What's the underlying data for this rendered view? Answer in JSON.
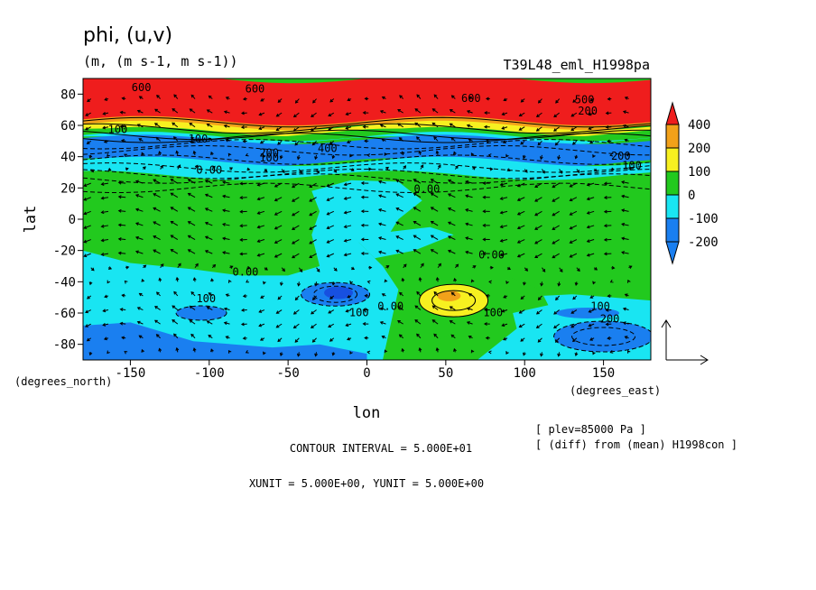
{
  "chart_data": {
    "type": "heatmap",
    "title": "phi, (u,v)",
    "units": "(m, (m s-1, m s-1))",
    "run_name": "T39L48_eml_H1998pa",
    "xlabel": "lon",
    "ylabel": "lat",
    "x_unit_label": "(degrees_east)",
    "y_unit_label": "(degrees_north)",
    "xlim": [
      -180,
      180
    ],
    "ylim": [
      -90,
      90
    ],
    "x_ticks": [
      -150,
      -100,
      -50,
      0,
      50,
      100,
      150
    ],
    "y_ticks": [
      -80,
      -60,
      -40,
      -20,
      0,
      20,
      40,
      60,
      80
    ],
    "levels": [
      {
        "label": "400",
        "color": "#ef1d1d"
      },
      {
        "label": "200",
        "color": "#f2a11a"
      },
      {
        "label": "100",
        "color": "#f7f020"
      },
      {
        "label": "0",
        "color": "#22c91e"
      },
      {
        "label": "-100",
        "color": "#19e5f2"
      },
      {
        "label": "-200",
        "color": "#1a7ff0"
      }
    ],
    "colors": {
      "red": "#ef1d1d",
      "orange": "#f2a11a",
      "yellow": "#f7f020",
      "green": "#22c91e",
      "cyan": "#19e5f2",
      "blue": "#1a7ff0",
      "dark_blue": "#1750e0"
    },
    "contour_labels": [
      {
        "text": "600",
        "lon": -143,
        "lat": 82
      },
      {
        "text": "600",
        "lon": -71,
        "lat": 81
      },
      {
        "text": "600",
        "lon": 66,
        "lat": 75
      },
      {
        "text": "500",
        "lon": 138,
        "lat": 74
      },
      {
        "text": "200",
        "lon": 140,
        "lat": 67
      },
      {
        "text": "100",
        "lon": -158,
        "lat": 55
      },
      {
        "text": "100",
        "lon": -107,
        "lat": 49
      },
      {
        "text": "400",
        "lon": -25,
        "lat": 43
      },
      {
        "text": "200",
        "lon": -62,
        "lat": 40
      },
      {
        "text": "100",
        "lon": -62,
        "lat": 37
      },
      {
        "text": "200",
        "lon": 161,
        "lat": 38
      },
      {
        "text": "100",
        "lon": 168,
        "lat": 32
      },
      {
        "text": "0.00",
        "lon": -100,
        "lat": 29
      },
      {
        "text": "0.00",
        "lon": 38,
        "lat": 17
      },
      {
        "text": "0.00",
        "lon": 79,
        "lat": -25
      },
      {
        "text": "0.00",
        "lon": -77,
        "lat": -36
      },
      {
        "text": "100",
        "lon": -102,
        "lat": -53
      },
      {
        "text": "100",
        "lon": -5,
        "lat": -62
      },
      {
        "text": "0.00",
        "lon": 15,
        "lat": -58
      },
      {
        "text": "100",
        "lon": 80,
        "lat": -62
      },
      {
        "text": "100",
        "lon": 148,
        "lat": -58
      },
      {
        "text": "200",
        "lon": 154,
        "lat": -66
      }
    ],
    "reference_vector": {
      "xunit": 5.0,
      "yunit": 5.0
    }
  },
  "footer": {
    "contour_interval": "CONTOUR INTERVAL = 5.000E+01",
    "vector_units": "XUNIT = 5.000E+00, YUNIT = 5.000E+00",
    "plev": "[ plev=85000 Pa ]",
    "diff": "[ (diff) from (mean) H1998con ]"
  }
}
